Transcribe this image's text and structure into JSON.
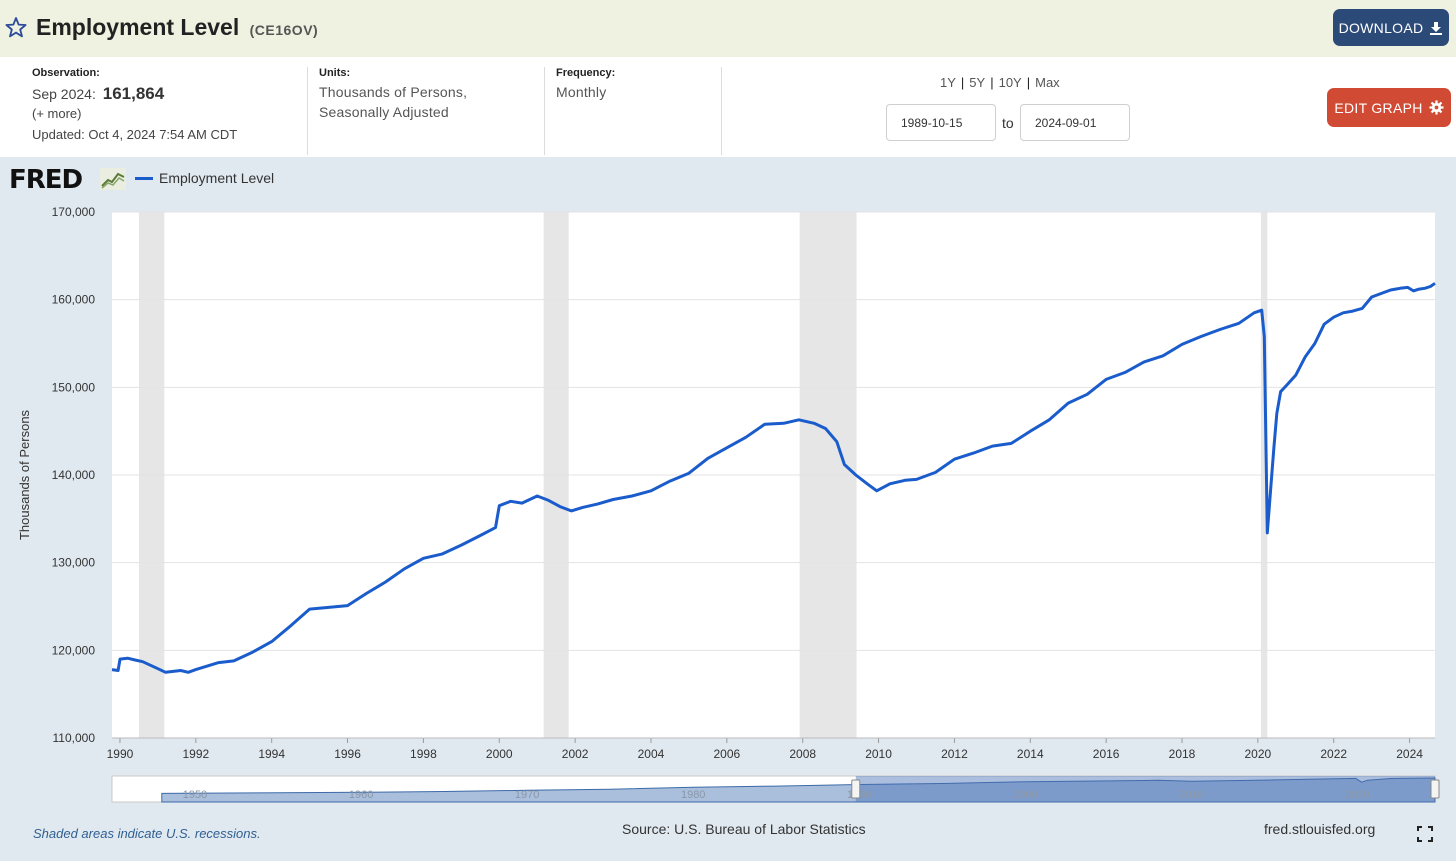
{
  "header": {
    "title": "Employment Level",
    "series_id": "(CE16OV)",
    "download_label": "DOWNLOAD"
  },
  "info": {
    "observation_label": "Observation:",
    "observation_period": "Sep 2024:",
    "observation_value": "161,864",
    "more_label": "(+ more)",
    "updated": "Updated: Oct 4, 2024 7:54 AM CDT",
    "units_label": "Units:",
    "units_line1": "Thousands of Persons,",
    "units_line2": "Seasonally Adjusted",
    "frequency_label": "Frequency:",
    "frequency_value": "Monthly"
  },
  "controls": {
    "ranges": [
      "1Y",
      "5Y",
      "10Y",
      "Max"
    ],
    "start_date": "1989-10-15",
    "to_label": "to",
    "end_date": "2024-09-01",
    "edit_label": "EDIT GRAPH"
  },
  "colors": {
    "series": "#1a5ccb",
    "recession": "#e6e6e6",
    "header_bg": "#f0f2e1",
    "graph_bg": "#e1e9f0",
    "download_bg": "#2c4a78",
    "edit_bg": "#d14b34"
  },
  "icons": {
    "favorite": "star-outline-icon",
    "download": "download-arrow-icon",
    "edit": "gear-icon",
    "fullscreen": "expand-icon"
  },
  "logo": {
    "text": "FRED"
  },
  "footer": {
    "note": "Shaded areas indicate U.S. recessions.",
    "source": "Source: U.S. Bureau of Labor Statistics",
    "url": "fred.stlouisfed.org"
  },
  "chart_data": {
    "type": "line",
    "title": "",
    "xlabel": "",
    "ylabel": "Thousands of Persons",
    "xlim": [
      1989.79,
      2024.67
    ],
    "ylim": [
      110000,
      170000
    ],
    "y_ticks": [
      110000,
      120000,
      130000,
      140000,
      150000,
      160000,
      170000
    ],
    "y_tick_labels": [
      "110,000",
      "120,000",
      "130,000",
      "140,000",
      "150,000",
      "160,000",
      "170,000"
    ],
    "x_ticks": [
      1990,
      1992,
      1994,
      1996,
      1998,
      2000,
      2002,
      2004,
      2006,
      2008,
      2010,
      2012,
      2014,
      2016,
      2018,
      2020,
      2022,
      2024
    ],
    "x_tick_labels": [
      "1990",
      "1992",
      "1994",
      "1996",
      "1998",
      "2000",
      "2002",
      "2004",
      "2006",
      "2008",
      "2010",
      "2012",
      "2014",
      "2016",
      "2018",
      "2020",
      "2022",
      "2024"
    ],
    "grid": "horizontal",
    "legend": "top-left",
    "recessions": [
      [
        1990.5,
        1991.17
      ],
      [
        2001.17,
        2001.83
      ],
      [
        2007.92,
        2009.42
      ],
      [
        2020.08,
        2020.25
      ]
    ],
    "series": [
      {
        "name": "Employment Level",
        "x": [
          1989.79,
          1989.95,
          1990.0,
          1990.2,
          1990.4,
          1990.6,
          1990.8,
          1991.0,
          1991.2,
          1991.4,
          1991.6,
          1991.8,
          1992.0,
          1992.3,
          1992.6,
          1993.0,
          1993.5,
          1994.0,
          1994.5,
          1995.0,
          1995.5,
          1996.0,
          1996.5,
          1997.0,
          1997.5,
          1998.0,
          1998.5,
          1999.0,
          1999.5,
          1999.9,
          2000.0,
          2000.3,
          2000.6,
          2001.0,
          2001.3,
          2001.6,
          2001.9,
          2002.2,
          2002.6,
          2003.0,
          2003.5,
          2004.0,
          2004.5,
          2005.0,
          2005.5,
          2006.0,
          2006.5,
          2007.0,
          2007.5,
          2007.9,
          2008.3,
          2008.6,
          2008.9,
          2009.1,
          2009.4,
          2009.7,
          2009.95,
          2010.3,
          2010.7,
          2011.0,
          2011.5,
          2012.0,
          2012.5,
          2013.0,
          2013.5,
          2014.0,
          2014.5,
          2015.0,
          2015.5,
          2016.0,
          2016.5,
          2017.0,
          2017.5,
          2018.0,
          2018.5,
          2019.0,
          2019.5,
          2019.9,
          2020.1,
          2020.17,
          2020.25,
          2020.33,
          2020.42,
          2020.5,
          2020.6,
          2020.75,
          2021.0,
          2021.25,
          2021.5,
          2021.75,
          2022.0,
          2022.25,
          2022.5,
          2022.75,
          2023.0,
          2023.25,
          2023.5,
          2023.75,
          2023.95,
          2024.1,
          2024.25,
          2024.4,
          2024.55,
          2024.67
        ],
        "values": [
          117800,
          117700,
          119000,
          119100,
          118900,
          118700,
          118300,
          117900,
          117500,
          117600,
          117700,
          117500,
          117800,
          118200,
          118600,
          118800,
          119800,
          121000,
          122800,
          124700,
          124900,
          125100,
          126500,
          127800,
          129300,
          130500,
          131000,
          132000,
          133100,
          134000,
          136500,
          137000,
          136800,
          137600,
          137100,
          136400,
          135900,
          136300,
          136700,
          137200,
          137600,
          138200,
          139300,
          140200,
          141900,
          143100,
          144300,
          145800,
          145900,
          146300,
          145900,
          145300,
          143800,
          141200,
          140000,
          139000,
          138200,
          139000,
          139400,
          139500,
          140300,
          141800,
          142500,
          143300,
          143600,
          145000,
          146300,
          148200,
          149200,
          150900,
          151700,
          152900,
          153600,
          154900,
          155800,
          156600,
          157300,
          158500,
          158800,
          155800,
          133400,
          138000,
          143000,
          147000,
          149500,
          150200,
          151400,
          153500,
          155000,
          157200,
          158000,
          158500,
          158700,
          159000,
          160300,
          160700,
          161100,
          161300,
          161400,
          161000,
          161200,
          161300,
          161500,
          161864
        ]
      }
    ]
  },
  "navigator": {
    "type": "area",
    "xlim": [
      1945,
      2024.67
    ],
    "ylim": [
      0,
      175000
    ],
    "x_tick_labels": [
      "1950",
      "1960",
      "1970",
      "1980",
      "1990",
      "2000",
      "2010",
      "2020"
    ],
    "x_ticks": [
      1950,
      1960,
      1970,
      1980,
      1990,
      2000,
      2010,
      2020
    ],
    "selected_range": [
      1989.79,
      2024.67
    ],
    "x": [
      1948,
      1955,
      1960,
      1965,
      1970,
      1975,
      1980,
      1985,
      1990,
      1995,
      2000,
      2005,
      2008,
      2010,
      2015,
      2019.9,
      2020.25,
      2020.6,
      2022,
      2024.67
    ],
    "values": [
      58000,
      62000,
      65000,
      71000,
      79000,
      86000,
      99000,
      107000,
      118000,
      124700,
      136500,
      141700,
      146000,
      139000,
      148500,
      158800,
      133400,
      147000,
      158000,
      161864
    ]
  }
}
